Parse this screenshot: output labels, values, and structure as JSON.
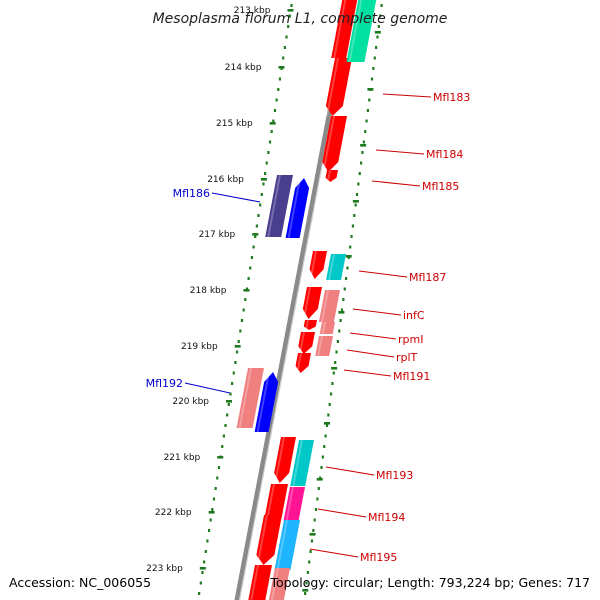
{
  "title": "Mesoplasma florum L1, complete genome",
  "accession": "Accession: NC_006055",
  "topology": "Topology: circular; Length: 793,224 bp; Genes: 717",
  "ticks": [
    "213 kbp",
    "214 kbp",
    "215 kbp",
    "216 kbp",
    "217 kbp",
    "218 kbp",
    "219 kbp",
    "220 kbp",
    "221 kbp",
    "222 kbp",
    "223 kbp"
  ],
  "genes": [
    {
      "name": "Mfl183",
      "color": "#cc0000"
    },
    {
      "name": "Mfl184",
      "color": "#cc0000"
    },
    {
      "name": "Mfl185",
      "color": "#cc0000"
    },
    {
      "name": "Mfl186",
      "color": "#0000cc"
    },
    {
      "name": "Mfl187",
      "color": "#cc0000"
    },
    {
      "name": "infC",
      "color": "#cc0000"
    },
    {
      "name": "rpmI",
      "color": "#cc0000"
    },
    {
      "name": "rplT",
      "color": "#cc0000"
    },
    {
      "name": "Mfl191",
      "color": "#cc0000"
    },
    {
      "name": "Mfl192",
      "color": "#0000cc"
    },
    {
      "name": "Mfl193",
      "color": "#cc0000"
    },
    {
      "name": "Mfl194",
      "color": "#cc0000"
    },
    {
      "name": "Mfl195",
      "color": "#cc0000"
    }
  ],
  "colors": {
    "backbone": "#8a8a8a",
    "tick": "#1f7a1f",
    "forward_gene": "#ff0000",
    "reverse_gene": "#0000ff",
    "reverse_gene_dark": "#4a3f8f",
    "pink": "#f08080",
    "cyan": "#00c8c8",
    "mint": "#00e0a0",
    "magenta": "#ff1493",
    "sky": "#1eb4ff"
  }
}
